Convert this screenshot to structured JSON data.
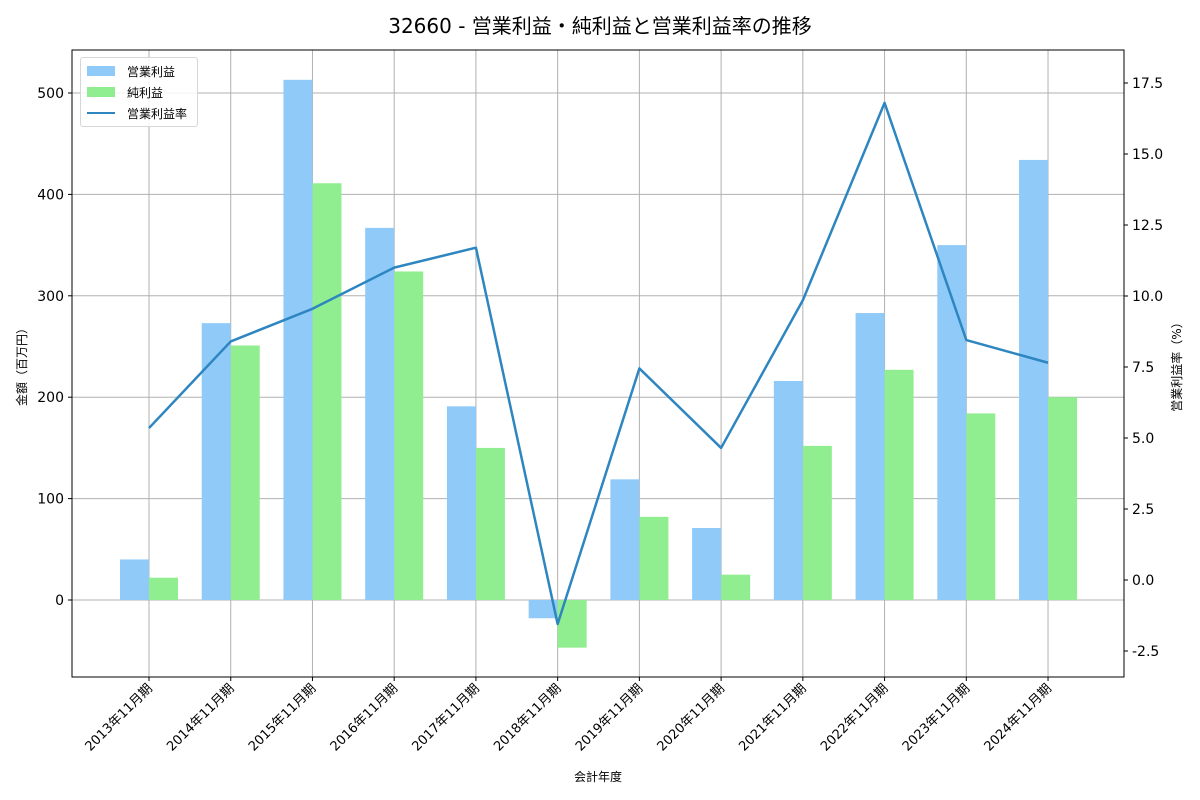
{
  "title": "32660 - 営業利益・純利益と営業利益率の推移",
  "colors": {
    "operating_profit": "#90CAF9",
    "net_profit": "#90EE90",
    "margin_line": "#2E86C1",
    "grid": "#b0b0b0"
  },
  "legend": {
    "items": [
      {
        "label": "営業利益",
        "kind": "bar"
      },
      {
        "label": "純利益",
        "kind": "bar"
      },
      {
        "label": "営業利益率",
        "kind": "line"
      }
    ]
  },
  "axes": {
    "x_label": "会計年度",
    "y_left_label": "金額（百万円）",
    "y_right_label": "営業利益率（%）",
    "y_left_ticks": [
      "0",
      "100",
      "200",
      "300",
      "400",
      "500"
    ],
    "y_right_ticks": [
      "-2.5",
      "0.0",
      "2.5",
      "5.0",
      "7.5",
      "10.0",
      "12.5",
      "15.0",
      "17.5"
    ]
  },
  "chart_data": {
    "type": "bar",
    "title": "32660 - 営業利益・純利益と営業利益率の推移",
    "xlabel": "会計年度",
    "ylabel": "金額（百万円）",
    "ylabel_right": "営業利益率（%）",
    "categories": [
      "2013年11月期",
      "2014年11月期",
      "2015年11月期",
      "2016年11月期",
      "2017年11月期",
      "2018年11月期",
      "2019年11月期",
      "2020年11月期",
      "2021年11月期",
      "2022年11月期",
      "2023年11月期",
      "2024年11月期"
    ],
    "series": [
      {
        "name": "営業利益",
        "type": "bar",
        "axis": "left",
        "values": [
          40,
          273,
          513,
          367,
          191,
          -18,
          119,
          71,
          216,
          283,
          350,
          434
        ]
      },
      {
        "name": "純利益",
        "type": "bar",
        "axis": "left",
        "values": [
          22,
          251,
          411,
          324,
          150,
          -47,
          82,
          25,
          152,
          227,
          184,
          200
        ]
      },
      {
        "name": "営業利益率",
        "type": "line",
        "axis": "right",
        "values": [
          5.35,
          8.4,
          9.55,
          11.0,
          11.7,
          -1.55,
          7.45,
          4.65,
          9.85,
          16.8,
          8.45,
          7.65
        ]
      }
    ],
    "ylim": [
      -76,
      540
    ],
    "ylim_right": [
      -3.4,
      18.6
    ],
    "grid": true,
    "legend_position": "upper left"
  }
}
